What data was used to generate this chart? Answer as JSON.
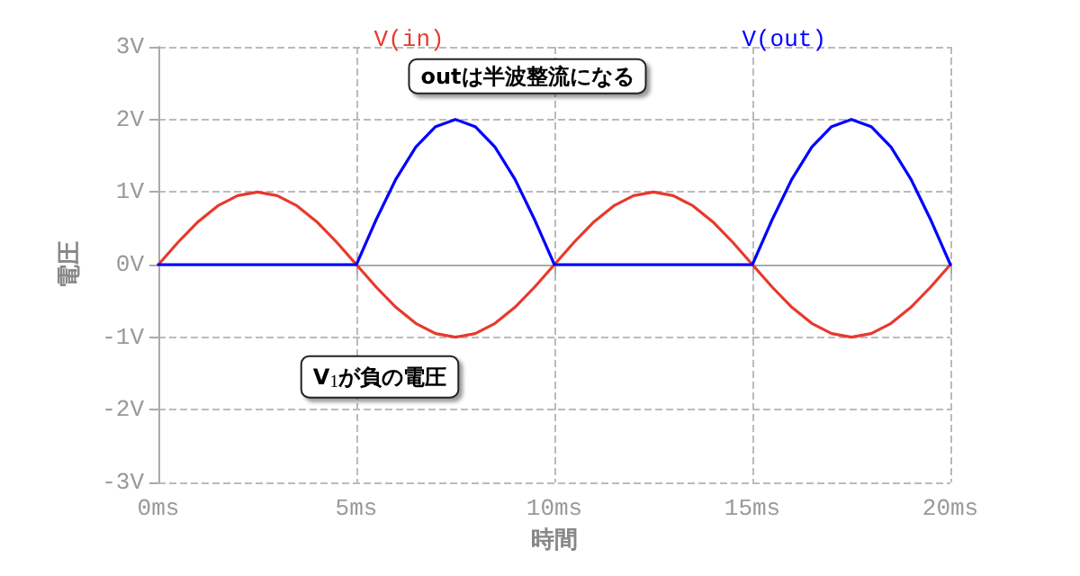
{
  "chart_data": {
    "type": "line",
    "xlabel": "時間",
    "ylabel": "電圧",
    "x": [
      0,
      0.5,
      1,
      1.5,
      2,
      2.5,
      3,
      3.5,
      4,
      4.5,
      5,
      5.5,
      6,
      6.5,
      7,
      7.5,
      8,
      8.5,
      9,
      9.5,
      10,
      10.5,
      11,
      11.5,
      12,
      12.5,
      13,
      13.5,
      14,
      14.5,
      15,
      15.5,
      16,
      16.5,
      17,
      17.5,
      18,
      18.5,
      19,
      19.5,
      20
    ],
    "series": [
      {
        "name": "V(in)",
        "color": "#e8392e",
        "values": [
          0,
          0.31,
          0.59,
          0.81,
          0.95,
          1,
          0.95,
          0.81,
          0.59,
          0.31,
          0,
          -0.31,
          -0.59,
          -0.81,
          -0.95,
          -1,
          -0.95,
          -0.81,
          -0.59,
          -0.31,
          0,
          0.31,
          0.59,
          0.81,
          0.95,
          1,
          0.95,
          0.81,
          0.59,
          0.31,
          0,
          -0.31,
          -0.59,
          -0.81,
          -0.95,
          -1,
          -0.95,
          -0.81,
          -0.59,
          -0.31,
          0
        ]
      },
      {
        "name": "V(out)",
        "color": "#0000ff",
        "values": [
          0,
          0,
          0,
          0,
          0,
          0,
          0,
          0,
          0,
          0,
          0,
          0.62,
          1.18,
          1.62,
          1.9,
          2,
          1.9,
          1.62,
          1.18,
          0.62,
          0,
          0,
          0,
          0,
          0,
          0,
          0,
          0,
          0,
          0,
          0,
          0.62,
          1.18,
          1.62,
          1.9,
          2,
          1.9,
          1.62,
          1.18,
          0.62,
          0
        ]
      }
    ],
    "xlim": [
      0,
      20
    ],
    "xticks": [
      {
        "value": 0,
        "label": "0ms"
      },
      {
        "value": 5,
        "label": "5ms"
      },
      {
        "value": 10,
        "label": "10ms"
      },
      {
        "value": 15,
        "label": "15ms"
      },
      {
        "value": 20,
        "label": "20ms"
      }
    ],
    "ylim": [
      -3,
      3
    ],
    "yticks": [
      {
        "value": -3,
        "label": "-3V"
      },
      {
        "value": -2,
        "label": "-2V"
      },
      {
        "value": -1,
        "label": "-1V"
      },
      {
        "value": 0,
        "label": "0V"
      },
      {
        "value": 1,
        "label": "1V"
      },
      {
        "value": 2,
        "label": "2V"
      },
      {
        "value": 3,
        "label": "3V"
      }
    ],
    "annotations": [
      {
        "text": "outは半波整流になる",
        "x": 7.5,
        "y": 2
      },
      {
        "text": "V$_{1}$が負の電圧",
        "x": 7.5,
        "y": -1
      }
    ],
    "grid": true,
    "legend": "top",
    "marker": "none",
    "line_style": "solid"
  }
}
